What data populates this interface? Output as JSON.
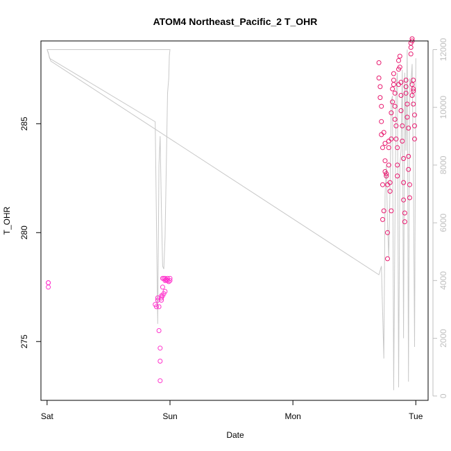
{
  "chart_data": {
    "type": "scatter",
    "title": "ATOM4 Northeast_Pacific_2 T_OHR",
    "xlabel": "Date",
    "ylabel": "T_OHR",
    "x_ticks": [
      "Sat",
      "Sun",
      "Mon",
      "Tue"
    ],
    "x_range": [
      -0.05,
      3.1
    ],
    "y_left_range": [
      272.3,
      288.8
    ],
    "y_left_ticks": [
      275,
      280,
      285
    ],
    "y_right_range": [
      -150,
      12300
    ],
    "y_right_ticks": [
      0,
      2000,
      4000,
      6000,
      8000,
      10000,
      12000
    ],
    "grid": false,
    "legend": "none",
    "colors": {
      "points_early": "#ff33cc",
      "points_late": "#e8186e",
      "altitude_line": "#c8c8c8",
      "axis": "#000000",
      "right_axis": "#bfbfbf"
    },
    "series": [
      {
        "axis": "left",
        "kind": "points",
        "x": [
          0.01,
          0.01,
          0.01
        ],
        "y": [
          277.7,
          277.7,
          277.5
        ]
      },
      {
        "axis": "left",
        "kind": "points",
        "x": [
          0.88,
          0.89,
          0.9,
          0.9,
          0.91,
          0.91,
          0.92,
          0.92,
          0.92,
          0.93,
          0.93,
          0.93,
          0.94,
          0.94,
          0.94,
          0.95,
          0.95,
          0.96,
          0.96,
          0.96,
          0.97,
          0.97,
          0.98,
          0.98,
          0.99,
          1.0,
          1.0
        ],
        "y": [
          276.7,
          276.6,
          277.0,
          276.9,
          276.6,
          275.5,
          274.7,
          274.1,
          273.2,
          277.0,
          276.9,
          277.1,
          277.1,
          277.9,
          277.5,
          277.2,
          277.9,
          277.3,
          277.9,
          277.8,
          277.85,
          277.8,
          277.9,
          277.8,
          277.75,
          277.9,
          277.8
        ]
      },
      {
        "axis": "left",
        "kind": "points",
        "x": [
          2.7,
          2.7,
          2.71,
          2.71,
          2.72,
          2.72,
          2.72,
          2.73,
          2.73,
          2.73,
          2.74,
          2.74,
          2.75,
          2.75,
          2.75,
          2.76,
          2.76,
          2.77,
          2.77,
          2.77,
          2.78,
          2.78,
          2.78,
          2.79,
          2.79,
          2.8,
          2.8,
          2.8,
          2.81,
          2.81,
          2.82,
          2.82,
          2.82,
          2.83,
          2.83,
          2.83,
          2.84,
          2.84,
          2.85,
          2.85,
          2.85,
          2.86,
          2.86,
          2.86,
          2.87,
          2.87,
          2.88,
          2.88,
          2.88,
          2.89,
          2.89,
          2.9,
          2.9,
          2.9,
          2.91,
          2.91,
          2.92,
          2.92,
          2.92,
          2.93,
          2.93,
          2.94,
          2.94,
          2.94,
          2.95,
          2.95,
          2.96,
          2.96,
          2.96,
          2.97,
          2.97,
          2.97,
          2.97,
          2.98,
          2.98,
          2.98,
          2.98,
          2.99,
          2.99,
          2.99
        ],
        "y": [
          287.8,
          287.1,
          286.7,
          286.2,
          285.8,
          285.1,
          284.5,
          283.9,
          282.2,
          280.6,
          281.0,
          284.6,
          284.1,
          283.3,
          282.8,
          282.7,
          282.6,
          282.2,
          280.0,
          278.8,
          283.9,
          284.2,
          283.1,
          282.3,
          281.9,
          281.0,
          284.3,
          285.5,
          286.0,
          286.6,
          286.8,
          287.3,
          287.0,
          286.4,
          285.8,
          285.2,
          284.9,
          284.3,
          283.9,
          283.1,
          282.6,
          286.8,
          287.5,
          287.9,
          288.1,
          287.6,
          286.9,
          286.3,
          285.6,
          284.9,
          284.2,
          283.4,
          282.3,
          281.5,
          280.9,
          280.5,
          287.0,
          286.7,
          286.4,
          285.9,
          285.3,
          284.8,
          283.5,
          282.9,
          282.2,
          281.6,
          288.5,
          288.7,
          288.2,
          288.9,
          288.8,
          286.8,
          286.3,
          287.0,
          286.6,
          286.5,
          285.9,
          285.4,
          284.9,
          284.3
        ]
      },
      {
        "axis": "right",
        "kind": "line",
        "x": [
          0.0,
          0.01,
          0.02,
          0.88,
          0.9,
          0.91,
          0.92,
          0.93,
          0.94,
          0.95,
          0.96,
          0.98,
          0.99,
          0.995,
          1.0,
          1.0,
          0.0,
          0.0,
          0.03,
          2.7,
          2.72,
          2.74,
          2.75,
          2.76,
          2.77,
          2.78,
          2.79,
          2.8,
          2.81,
          2.82,
          2.83,
          2.84,
          2.85,
          2.86,
          2.87,
          2.88,
          2.89,
          2.9,
          2.91,
          2.92,
          2.93,
          2.94,
          2.95,
          2.96,
          2.97,
          2.98,
          2.99,
          3.0
        ],
        "y": [
          12000,
          11900,
          11700,
          9500,
          2500,
          8000,
          9000,
          6500,
          4500,
          4400,
          5500,
          10500,
          11000,
          11800,
          12000,
          12000,
          12000,
          12000,
          11600,
          4200,
          4500,
          1300,
          7000,
          8000,
          6000,
          4800,
          7200,
          10200,
          10400,
          200,
          6000,
          10600,
          11200,
          300,
          8000,
          8500,
          11300,
          2000,
          11200,
          8500,
          12000,
          500,
          11000,
          10800,
          11500,
          8000,
          1700,
          11700
        ]
      }
    ]
  }
}
